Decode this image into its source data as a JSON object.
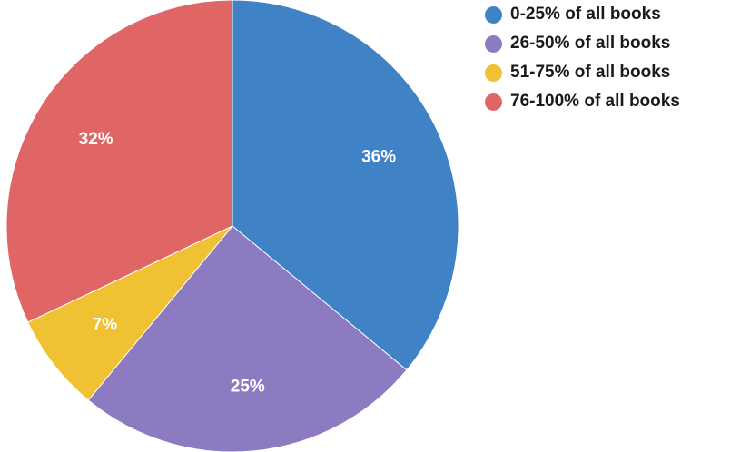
{
  "chart_data": {
    "type": "pie",
    "title": "",
    "legend_position": "top-right",
    "categories": [
      "0-25% of all books",
      "26-50% of all books",
      "51-75% of all books",
      "76-100% of all books"
    ],
    "values": [
      36,
      25,
      7,
      32
    ],
    "labels": [
      "36%",
      "25%",
      "7%",
      "32%"
    ],
    "colors": [
      "#3f82c6",
      "#8c7bc0",
      "#f0c132",
      "#e06666"
    ]
  }
}
